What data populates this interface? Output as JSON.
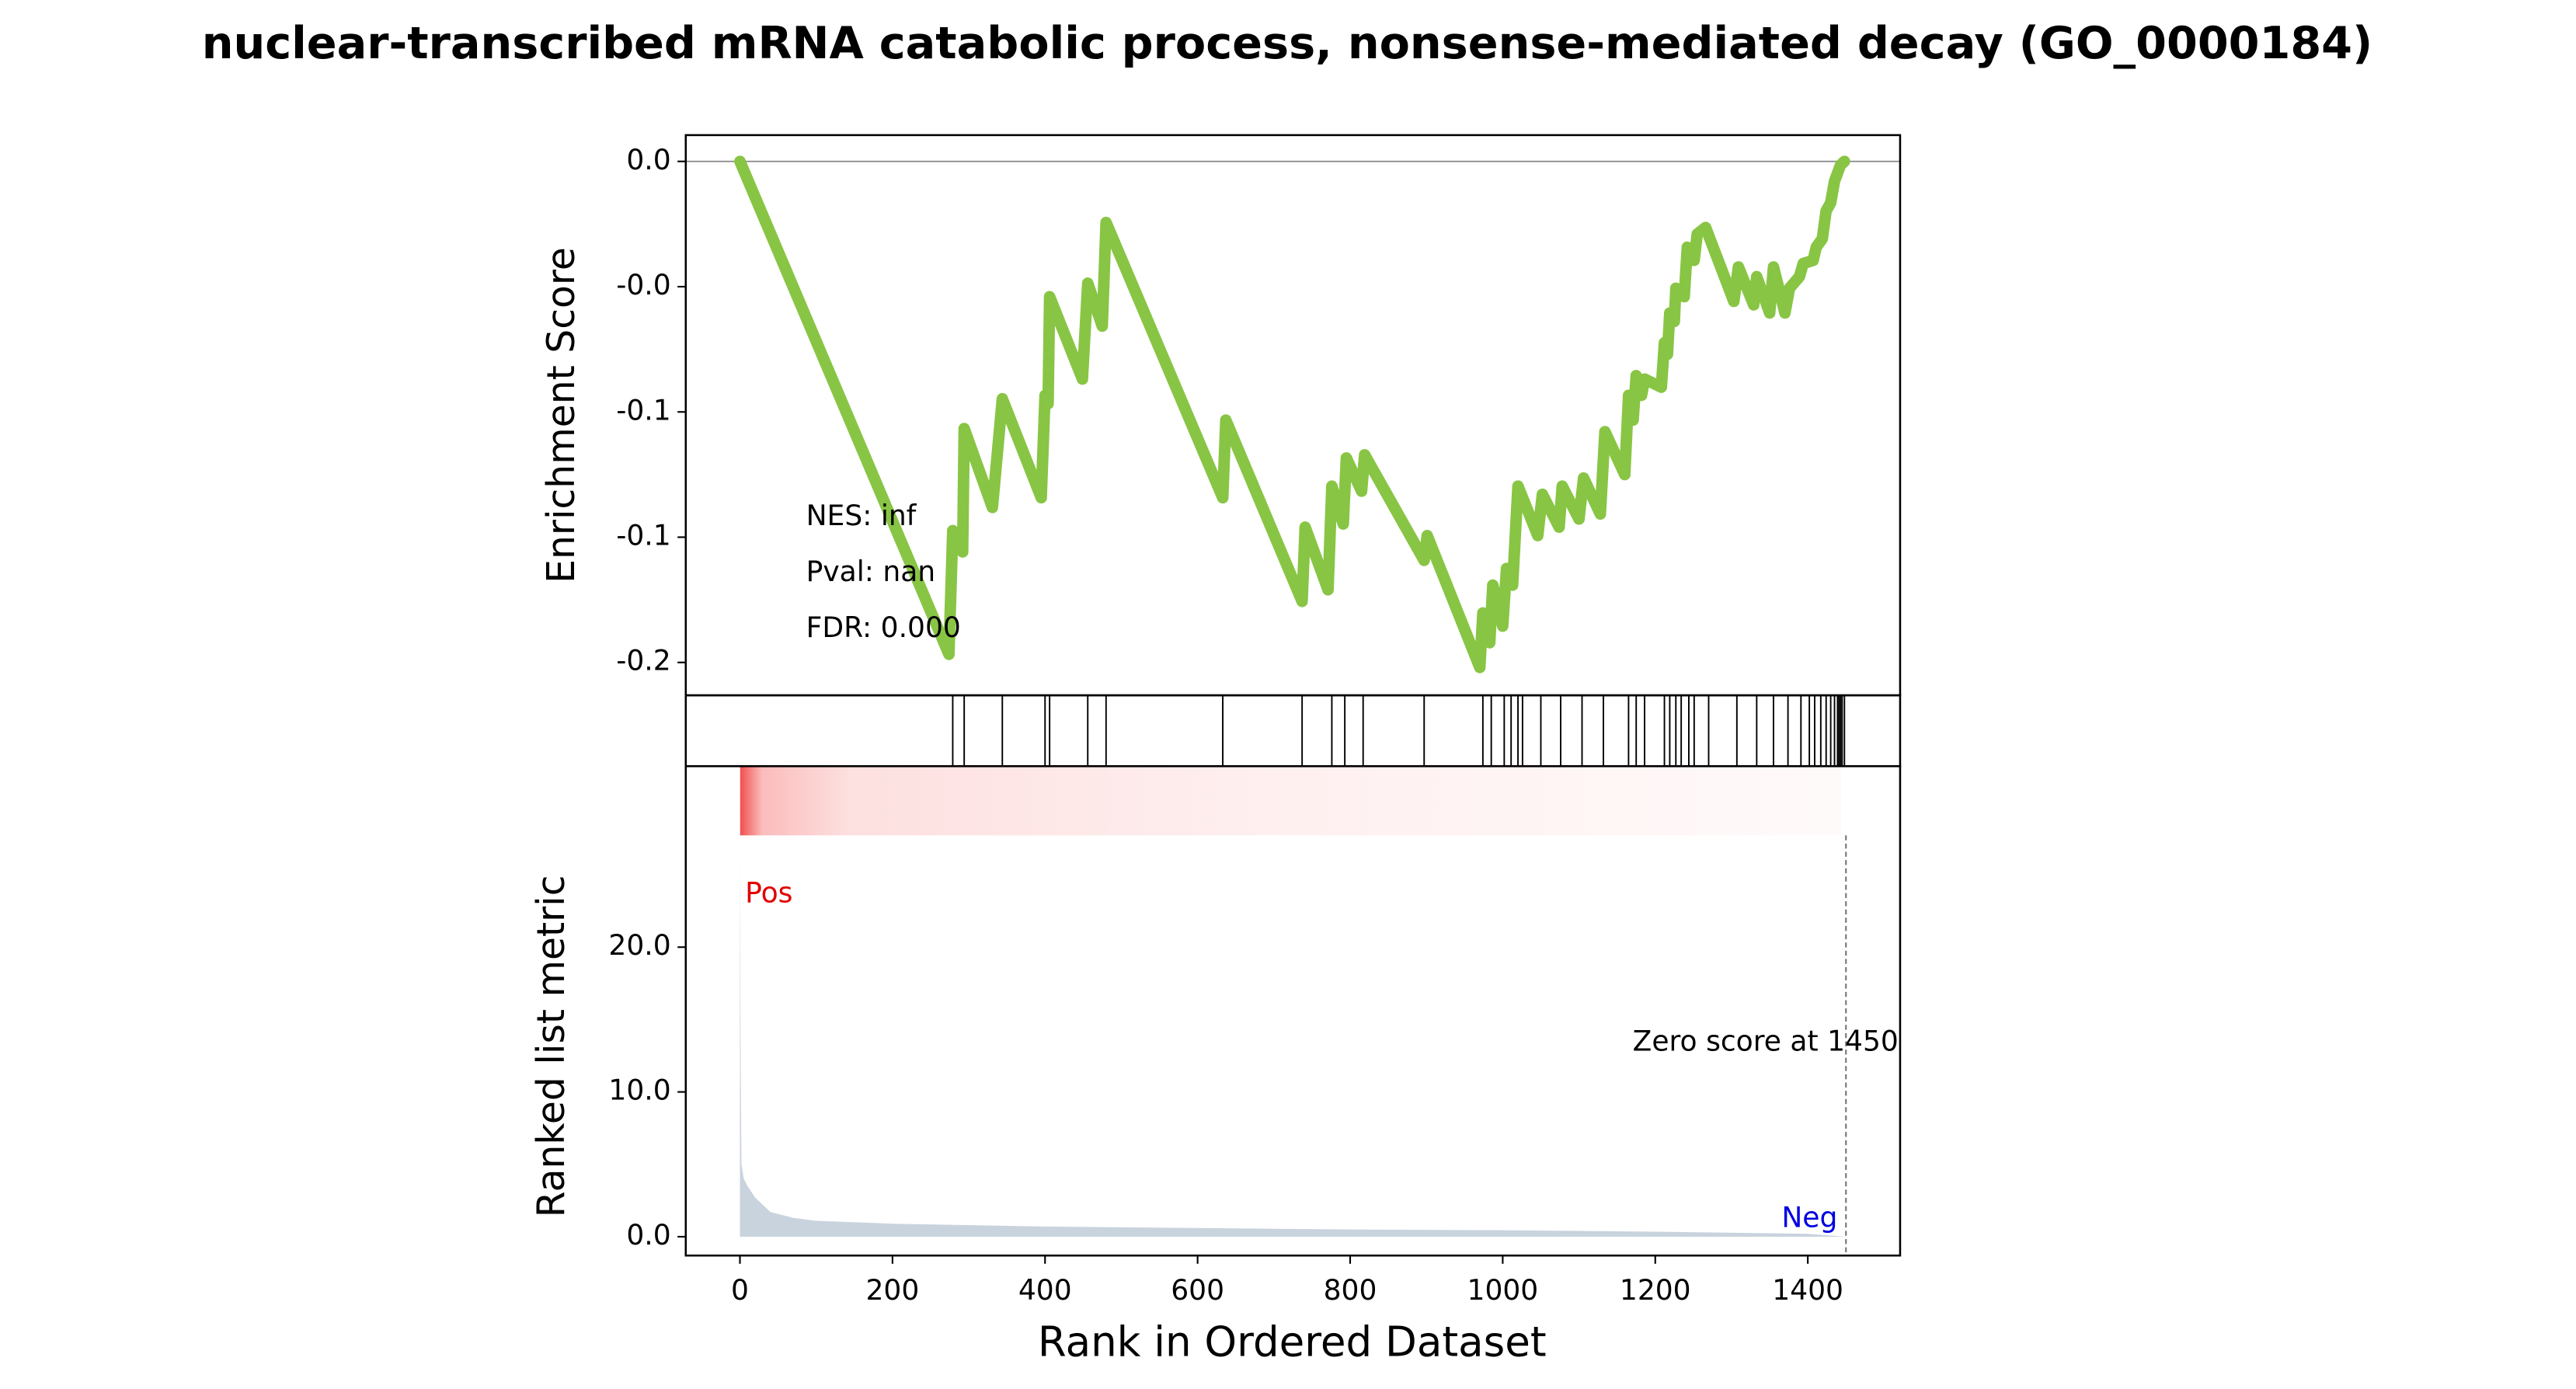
{
  "chart_data": {
    "type": "gsea",
    "title": "nuclear-transcribed mRNA catabolic process, nonsense-mediated decay (GO_0000184)",
    "xlabel": "Rank in Ordered Dataset",
    "xlim": [
      -71,
      1521
    ],
    "xticks": [
      0,
      200,
      400,
      600,
      800,
      1000,
      1200,
      1400
    ],
    "es": {
      "ylabel": "Enrichment Score",
      "color": "#88c544",
      "ylim": [
        -0.1705,
        0.0084
      ],
      "yticks": [
        {
          "value": 0,
          "label": "0.0"
        },
        {
          "value": -0.04,
          "label": "-0.0"
        },
        {
          "value": -0.08,
          "label": "-0.1"
        },
        {
          "value": -0.12,
          "label": "-0.1"
        },
        {
          "value": -0.16,
          "label": "-0.2"
        }
      ],
      "x": [
        0,
        274,
        279,
        292,
        294,
        331,
        344,
        395,
        400,
        404,
        406,
        449,
        456,
        475,
        480,
        633,
        637,
        737,
        741,
        771,
        776,
        791,
        795,
        815,
        819,
        897,
        901,
        970,
        974,
        983,
        987,
        1000,
        1005,
        1013,
        1020,
        1046,
        1052,
        1074,
        1078,
        1100,
        1106,
        1128,
        1134,
        1160,
        1165,
        1171,
        1175,
        1182,
        1186,
        1208,
        1212,
        1216,
        1219,
        1225,
        1227,
        1238,
        1242,
        1251,
        1255,
        1266,
        1303,
        1309,
        1329,
        1333,
        1350,
        1355,
        1370,
        1376,
        1389,
        1394,
        1407,
        1411,
        1419,
        1424,
        1430,
        1435,
        1439,
        1443,
        1448
      ],
      "y": [
        0,
        -0.1574,
        -0.1179,
        -0.1247,
        -0.0853,
        -0.1105,
        -0.0758,
        -0.1074,
        -0.0747,
        -0.0774,
        -0.0432,
        -0.0695,
        -0.0389,
        -0.0526,
        -0.0195,
        -0.1074,
        -0.0826,
        -0.1405,
        -0.1168,
        -0.1368,
        -0.1037,
        -0.1158,
        -0.0947,
        -0.1053,
        -0.0937,
        -0.1274,
        -0.1195,
        -0.1616,
        -0.1442,
        -0.1537,
        -0.1353,
        -0.1484,
        -0.13,
        -0.1353,
        -0.1037,
        -0.1195,
        -0.1063,
        -0.1168,
        -0.1037,
        -0.1142,
        -0.1011,
        -0.1126,
        -0.0863,
        -0.1,
        -0.0747,
        -0.0826,
        -0.0684,
        -0.0747,
        -0.0695,
        -0.0721,
        -0.0579,
        -0.0616,
        -0.0484,
        -0.0511,
        -0.0405,
        -0.0432,
        -0.0274,
        -0.0316,
        -0.0232,
        -0.0211,
        -0.0447,
        -0.0337,
        -0.0458,
        -0.0368,
        -0.0484,
        -0.0337,
        -0.0484,
        -0.0405,
        -0.0368,
        -0.0326,
        -0.0316,
        -0.0274,
        -0.0247,
        -0.0158,
        -0.0132,
        -0.0063,
        -0.0037,
        -0.0011,
        0
      ],
      "annotations": [
        "NES: inf",
        "Pval: nan",
        "FDR: 0.000"
      ]
    },
    "hits": {
      "x": [
        279,
        294,
        344,
        400,
        406,
        456,
        480,
        633,
        737,
        776,
        793,
        817,
        897,
        974,
        985,
        1002,
        1011,
        1020,
        1026,
        1050,
        1076,
        1104,
        1132,
        1165,
        1175,
        1186,
        1212,
        1219,
        1227,
        1234,
        1244,
        1251,
        1270,
        1307,
        1333,
        1355,
        1374,
        1391,
        1402,
        1409,
        1417,
        1424,
        1430,
        1435,
        1439,
        1441,
        1443,
        1445,
        1448
      ]
    },
    "metric": {
      "ylabel": "Ranked list metric",
      "color": "#c9d3de",
      "ylim": [
        -1.3,
        32.5
      ],
      "yticks": [
        {
          "value": 0,
          "label": "0.0"
        },
        {
          "value": 10,
          "label": "10.0"
        },
        {
          "value": 20,
          "label": "20.0"
        }
      ],
      "x": [
        0,
        1,
        2,
        5,
        10,
        20,
        40,
        70,
        100,
        200,
        400,
        600,
        800,
        1000,
        1200,
        1400,
        1450
      ],
      "y": [
        26.5,
        12,
        5,
        4,
        3.5,
        2.7,
        1.7,
        1.3,
        1.1,
        0.9,
        0.7,
        0.6,
        0.5,
        0.45,
        0.35,
        0.2,
        0
      ],
      "pos_label": "Pos",
      "neg_label": "Neg",
      "zero_label": "Zero score at 1450"
    }
  }
}
